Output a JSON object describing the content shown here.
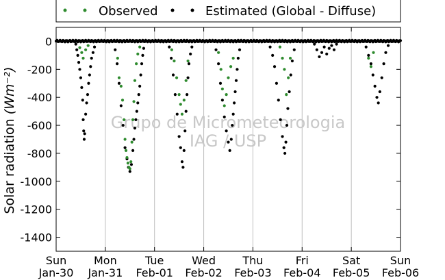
{
  "chart_data": {
    "type": "scatter",
    "title": "",
    "ylabel": "Solar radiation",
    "ylabel_unit": "(Wm⁻²)",
    "xlabel": "",
    "ylim": [
      -1500,
      100
    ],
    "xlim": [
      0,
      7
    ],
    "yticks": [
      0,
      -200,
      -400,
      -600,
      -800,
      -1000,
      -1200,
      -1400
    ],
    "xticks": [
      {
        "pos": 0,
        "line1": "Sun",
        "line2": "Jan-30"
      },
      {
        "pos": 1,
        "line1": "Mon",
        "line2": "Jan-31"
      },
      {
        "pos": 2,
        "line1": "Tue",
        "line2": "Feb-01"
      },
      {
        "pos": 3,
        "line1": "Wed",
        "line2": "Feb-02"
      },
      {
        "pos": 4,
        "line1": "Thu",
        "line2": "Feb-03"
      },
      {
        "pos": 5,
        "line1": "Fri",
        "line2": "Feb-04"
      },
      {
        "pos": 6,
        "line1": "Sat",
        "line2": "Feb-05"
      },
      {
        "pos": 7,
        "line1": "Sun",
        "line2": "Feb-06"
      }
    ],
    "grid": "vertical",
    "legend_position": "top",
    "watermark": [
      "Grupo de Micrometeorologia",
      "IAG / USP"
    ],
    "series": [
      {
        "name": "Observed",
        "color": "#2e8b2e",
        "points": [
          [
            0.48,
            -45
          ],
          [
            0.52,
            -80
          ],
          [
            0.55,
            -120
          ],
          [
            0.6,
            -60
          ],
          [
            0.65,
            -30
          ],
          [
            1.25,
            -120
          ],
          [
            1.28,
            -260
          ],
          [
            1.32,
            -320
          ],
          [
            1.35,
            -420
          ],
          [
            1.38,
            -560
          ],
          [
            1.4,
            -700
          ],
          [
            1.42,
            -780
          ],
          [
            1.44,
            -830
          ],
          [
            1.46,
            -870
          ],
          [
            1.48,
            -900
          ],
          [
            1.5,
            -910
          ],
          [
            1.52,
            -860
          ],
          [
            1.54,
            -720
          ],
          [
            1.56,
            -560
          ],
          [
            1.58,
            -430
          ],
          [
            1.6,
            -280
          ],
          [
            1.63,
            -160
          ],
          [
            1.66,
            -90
          ],
          [
            1.7,
            -40
          ],
          [
            2.35,
            -60
          ],
          [
            2.4,
            -140
          ],
          [
            2.45,
            -260
          ],
          [
            2.5,
            -380
          ],
          [
            2.53,
            -450
          ],
          [
            2.56,
            -520
          ],
          [
            2.6,
            -420
          ],
          [
            2.64,
            -280
          ],
          [
            2.68,
            -140
          ],
          [
            3.3,
            -80
          ],
          [
            3.35,
            -200
          ],
          [
            3.38,
            -340
          ],
          [
            3.42,
            -460
          ],
          [
            3.46,
            -380
          ],
          [
            3.5,
            -260
          ],
          [
            3.55,
            -180
          ],
          [
            3.6,
            -120
          ],
          [
            4.55,
            -40
          ],
          [
            4.6,
            -120
          ],
          [
            4.64,
            -200
          ],
          [
            4.68,
            -380
          ],
          [
            4.72,
            -260
          ],
          [
            4.76,
            -120
          ],
          [
            6.35,
            -120
          ],
          [
            6.4,
            -180
          ],
          [
            6.45,
            -80
          ]
        ]
      },
      {
        "name": "Estimated (Global - Diffuse)",
        "color": "#000000",
        "points": [
          [
            0.4,
            -20
          ],
          [
            0.42,
            -60
          ],
          [
            0.44,
            -100
          ],
          [
            0.46,
            -150
          ],
          [
            0.48,
            -200
          ],
          [
            0.5,
            -260
          ],
          [
            0.52,
            -330
          ],
          [
            0.54,
            -420
          ],
          [
            0.55,
            -560
          ],
          [
            0.56,
            -640
          ],
          [
            0.57,
            -700
          ],
          [
            0.58,
            -660
          ],
          [
            0.6,
            -520
          ],
          [
            0.62,
            -440
          ],
          [
            0.64,
            -380
          ],
          [
            0.66,
            -300
          ],
          [
            0.68,
            -240
          ],
          [
            0.7,
            -180
          ],
          [
            0.72,
            -120
          ],
          [
            0.75,
            -80
          ],
          [
            0.78,
            -40
          ],
          [
            1.2,
            -60
          ],
          [
            1.24,
            -160
          ],
          [
            1.28,
            -300
          ],
          [
            1.32,
            -460
          ],
          [
            1.36,
            -600
          ],
          [
            1.4,
            -760
          ],
          [
            1.44,
            -840
          ],
          [
            1.47,
            -900
          ],
          [
            1.5,
            -930
          ],
          [
            1.53,
            -880
          ],
          [
            1.56,
            -780
          ],
          [
            1.58,
            -700
          ],
          [
            1.6,
            -620
          ],
          [
            1.62,
            -560
          ],
          [
            1.64,
            -500
          ],
          [
            1.66,
            -440
          ],
          [
            1.68,
            -380
          ],
          [
            1.7,
            -320
          ],
          [
            1.72,
            -240
          ],
          [
            1.74,
            -160
          ],
          [
            1.76,
            -100
          ],
          [
            1.78,
            -50
          ],
          [
            2.3,
            -40
          ],
          [
            2.34,
            -120
          ],
          [
            2.38,
            -240
          ],
          [
            2.42,
            -380
          ],
          [
            2.46,
            -520
          ],
          [
            2.5,
            -680
          ],
          [
            2.53,
            -760
          ],
          [
            2.56,
            -860
          ],
          [
            2.58,
            -900
          ],
          [
            2.6,
            -780
          ],
          [
            2.62,
            -640
          ],
          [
            2.64,
            -500
          ],
          [
            2.66,
            -380
          ],
          [
            2.68,
            -260
          ],
          [
            2.7,
            -160
          ],
          [
            2.73,
            -90
          ],
          [
            2.76,
            -40
          ],
          [
            3.25,
            -60
          ],
          [
            3.3,
            -160
          ],
          [
            3.34,
            -300
          ],
          [
            3.38,
            -420
          ],
          [
            3.42,
            -540
          ],
          [
            3.46,
            -640
          ],
          [
            3.5,
            -720
          ],
          [
            3.53,
            -780
          ],
          [
            3.56,
            -700
          ],
          [
            3.58,
            -600
          ],
          [
            3.6,
            -520
          ],
          [
            3.62,
            -440
          ],
          [
            3.64,
            -360
          ],
          [
            3.66,
            -280
          ],
          [
            3.68,
            -200
          ],
          [
            3.7,
            -120
          ],
          [
            3.73,
            -60
          ],
          [
            4.35,
            -40
          ],
          [
            4.4,
            -100
          ],
          [
            4.44,
            -180
          ],
          [
            4.48,
            -300
          ],
          [
            4.52,
            -420
          ],
          [
            4.56,
            -560
          ],
          [
            4.6,
            -680
          ],
          [
            4.63,
            -760
          ],
          [
            4.65,
            -800
          ],
          [
            4.67,
            -720
          ],
          [
            4.69,
            -600
          ],
          [
            4.71,
            -480
          ],
          [
            4.74,
            -360
          ],
          [
            4.77,
            -240
          ],
          [
            4.8,
            -140
          ],
          [
            4.84,
            -60
          ],
          [
            5.25,
            -20
          ],
          [
            5.3,
            -60
          ],
          [
            5.35,
            -110
          ],
          [
            5.4,
            -80
          ],
          [
            5.45,
            -40
          ],
          [
            5.5,
            -90
          ],
          [
            5.55,
            -50
          ],
          [
            5.6,
            -30
          ],
          [
            5.65,
            -60
          ],
          [
            5.7,
            -20
          ],
          [
            6.3,
            -40
          ],
          [
            6.35,
            -100
          ],
          [
            6.4,
            -160
          ],
          [
            6.44,
            -240
          ],
          [
            6.48,
            -320
          ],
          [
            6.52,
            -400
          ],
          [
            6.55,
            -440
          ],
          [
            6.58,
            -360
          ],
          [
            6.62,
            -260
          ],
          [
            6.66,
            -160
          ],
          [
            6.7,
            -80
          ],
          [
            6.75,
            -30
          ]
        ]
      }
    ]
  }
}
